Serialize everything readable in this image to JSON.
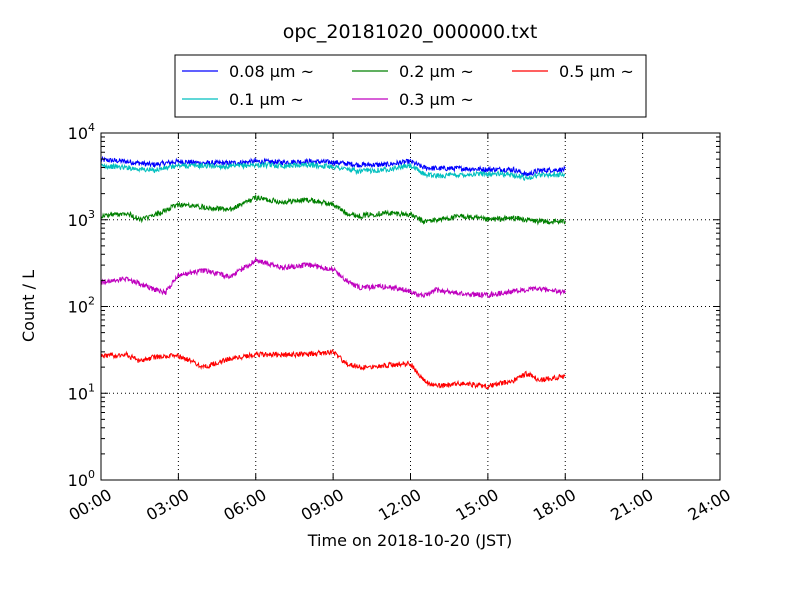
{
  "chart_data": {
    "type": "line",
    "title": "opc_20181020_000000.txt",
    "xlabel": "Time on 2018-10-20 (JST)",
    "ylabel": "Count / L",
    "y_scale": "log",
    "ylim": [
      1,
      10000
    ],
    "xlim": [
      "00:00",
      "24:00"
    ],
    "grid": true,
    "legend_position": "top-center, outside plot",
    "x_ticks": [
      "00:00",
      "03:00",
      "06:00",
      "09:00",
      "12:00",
      "15:00",
      "18:00",
      "21:00",
      "24:00"
    ],
    "y_ticks": [
      {
        "base": "10",
        "exp": "0",
        "value": 1
      },
      {
        "base": "10",
        "exp": "1",
        "value": 10
      },
      {
        "base": "10",
        "exp": "2",
        "value": 100
      },
      {
        "base": "10",
        "exp": "3",
        "value": 1000
      },
      {
        "base": "10",
        "exp": "4",
        "value": 10000
      }
    ],
    "series": [
      {
        "name": "0.08 μm ~",
        "color": "#0000ff",
        "x": [
          "00:00",
          "01:00",
          "02:00",
          "03:00",
          "04:00",
          "05:00",
          "06:00",
          "07:00",
          "08:00",
          "09:00",
          "10:00",
          "11:00",
          "12:00",
          "12:30",
          "13:00",
          "14:00",
          "15:00",
          "16:00",
          "16:30",
          "17:00",
          "18:00"
        ],
        "values": [
          4900,
          4700,
          4300,
          4700,
          4500,
          4500,
          4700,
          4600,
          4700,
          4600,
          4300,
          4300,
          4700,
          4000,
          3900,
          3900,
          3800,
          3800,
          3300,
          3700,
          3800
        ]
      },
      {
        "name": "0.1 μm ~",
        "color": "#00bfbf",
        "x": [
          "00:00",
          "01:00",
          "02:00",
          "03:00",
          "04:00",
          "05:00",
          "06:00",
          "07:00",
          "08:00",
          "09:00",
          "10:00",
          "11:00",
          "12:00",
          "12:30",
          "13:00",
          "14:00",
          "15:00",
          "16:00",
          "16:30",
          "17:00",
          "18:00"
        ],
        "values": [
          4200,
          4000,
          3700,
          4200,
          4200,
          4100,
          4300,
          4200,
          4300,
          4100,
          3600,
          3800,
          4200,
          3400,
          3200,
          3300,
          3400,
          3300,
          3000,
          3300,
          3300
        ]
      },
      {
        "name": "0.2 μm ~",
        "color": "#008000",
        "x": [
          "00:00",
          "01:00",
          "01:30",
          "02:00",
          "03:00",
          "04:00",
          "05:00",
          "06:00",
          "07:00",
          "08:00",
          "09:00",
          "09:30",
          "10:00",
          "11:00",
          "12:00",
          "12:30",
          "13:00",
          "14:00",
          "15:00",
          "16:00",
          "17:00",
          "18:00"
        ],
        "values": [
          1100,
          1200,
          1000,
          1100,
          1500,
          1400,
          1300,
          1800,
          1600,
          1700,
          1500,
          1200,
          1100,
          1200,
          1150,
          950,
          1000,
          1100,
          1000,
          1050,
          950,
          950
        ]
      },
      {
        "name": "0.3 μm ~",
        "color": "#bf00bf",
        "x": [
          "00:00",
          "01:00",
          "02:00",
          "02:30",
          "03:00",
          "04:00",
          "05:00",
          "06:00",
          "07:00",
          "08:00",
          "09:00",
          "09:30",
          "10:00",
          "11:00",
          "12:00",
          "12:30",
          "13:00",
          "14:00",
          "15:00",
          "16:00",
          "17:00",
          "18:00"
        ],
        "values": [
          190,
          210,
          160,
          145,
          230,
          260,
          220,
          340,
          280,
          300,
          270,
          200,
          165,
          170,
          150,
          130,
          155,
          140,
          135,
          150,
          160,
          145
        ]
      },
      {
        "name": "0.5 μm ~",
        "color": "#ff0000",
        "x": [
          "00:00",
          "01:00",
          "01:30",
          "02:00",
          "03:00",
          "04:00",
          "05:00",
          "06:00",
          "07:00",
          "08:00",
          "09:00",
          "09:30",
          "10:00",
          "11:00",
          "12:00",
          "12:30",
          "13:00",
          "14:00",
          "15:00",
          "16:00",
          "16:30",
          "17:00",
          "18:00"
        ],
        "values": [
          27,
          28,
          23,
          26,
          27,
          20,
          25,
          28,
          28,
          28,
          30,
          22,
          20,
          21,
          22,
          14,
          12,
          13,
          12,
          14,
          17,
          14,
          16
        ]
      }
    ]
  }
}
